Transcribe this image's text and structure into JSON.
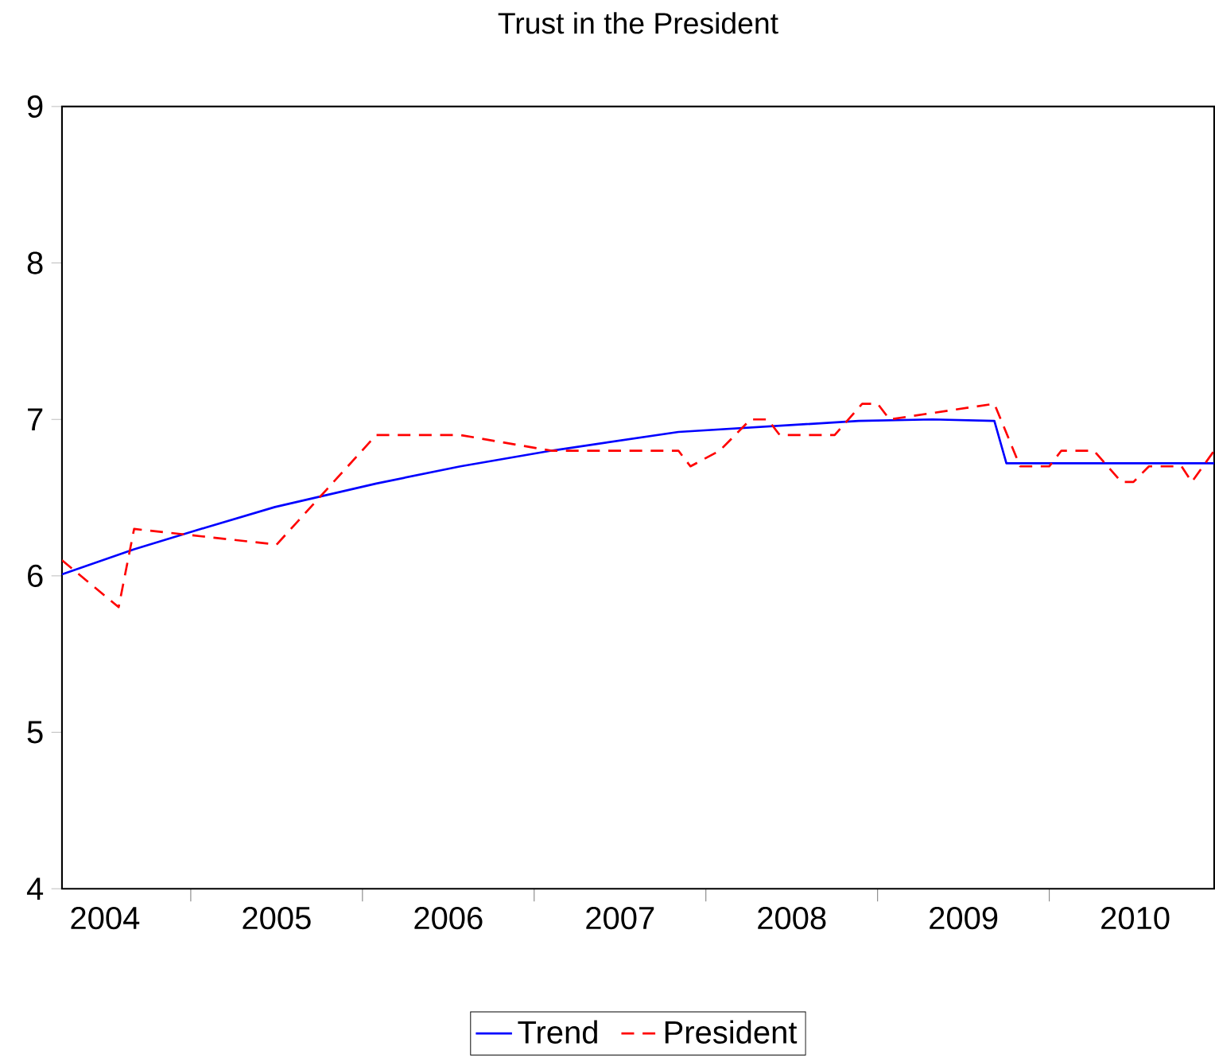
{
  "chart_data": {
    "type": "line",
    "title": "Trust in the President",
    "xlim": [
      2004.25,
      2010.96
    ],
    "ylim": [
      4,
      9
    ],
    "xticks": [
      {
        "value": 2004.5,
        "label": "2004"
      },
      {
        "value": 2005,
        "label": null
      },
      {
        "value": 2005.5,
        "label": "2005"
      },
      {
        "value": 2006,
        "label": null
      },
      {
        "value": 2006.5,
        "label": "2006"
      },
      {
        "value": 2007,
        "label": null
      },
      {
        "value": 2007.5,
        "label": "2007"
      },
      {
        "value": 2008,
        "label": null
      },
      {
        "value": 2008.5,
        "label": "2008"
      },
      {
        "value": 2009,
        "label": null
      },
      {
        "value": 2009.5,
        "label": "2009"
      },
      {
        "value": 2010,
        "label": null
      },
      {
        "value": 2010.5,
        "label": "2010"
      }
    ],
    "yticks": [
      4,
      5,
      6,
      7,
      8,
      9
    ],
    "grid": false,
    "legend": "bottom",
    "marker": "none",
    "series": [
      {
        "name": "Trend",
        "color": "#0000ff",
        "line_style": "solid",
        "x": [
          2004.25,
          2004.67,
          2005.09,
          2005.49,
          2006.08,
          2006.57,
          2007.1,
          2007.84,
          2008.89,
          2009.32,
          2009.68,
          2009.75,
          2010.96
        ],
        "values": [
          6.01,
          6.17,
          6.31,
          6.44,
          6.59,
          6.7,
          6.8,
          6.92,
          6.99,
          7.0,
          6.99,
          6.72,
          6.72
        ]
      },
      {
        "name": "President",
        "color": "#ff0000",
        "line_style": "dashed",
        "x": [
          2004.25,
          2004.58,
          2004.67,
          2005.5,
          2006.08,
          2006.57,
          2007.1,
          2007.84,
          2007.91,
          2008.08,
          2008.26,
          2008.36,
          2008.43,
          2008.75,
          2008.91,
          2009.0,
          2009.07,
          2009.68,
          2009.83,
          2010.0,
          2010.07,
          2010.26,
          2010.42,
          2010.49,
          2010.58,
          2010.77,
          2010.83,
          2010.96
        ],
        "values": [
          6.1,
          5.8,
          6.3,
          6.2,
          6.9,
          6.9,
          6.8,
          6.8,
          6.7,
          6.8,
          7.0,
          7.0,
          6.9,
          6.9,
          7.1,
          7.1,
          7.0,
          7.1,
          6.7,
          6.7,
          6.8,
          6.8,
          6.6,
          6.6,
          6.7,
          6.7,
          6.6,
          6.8
        ]
      }
    ]
  }
}
